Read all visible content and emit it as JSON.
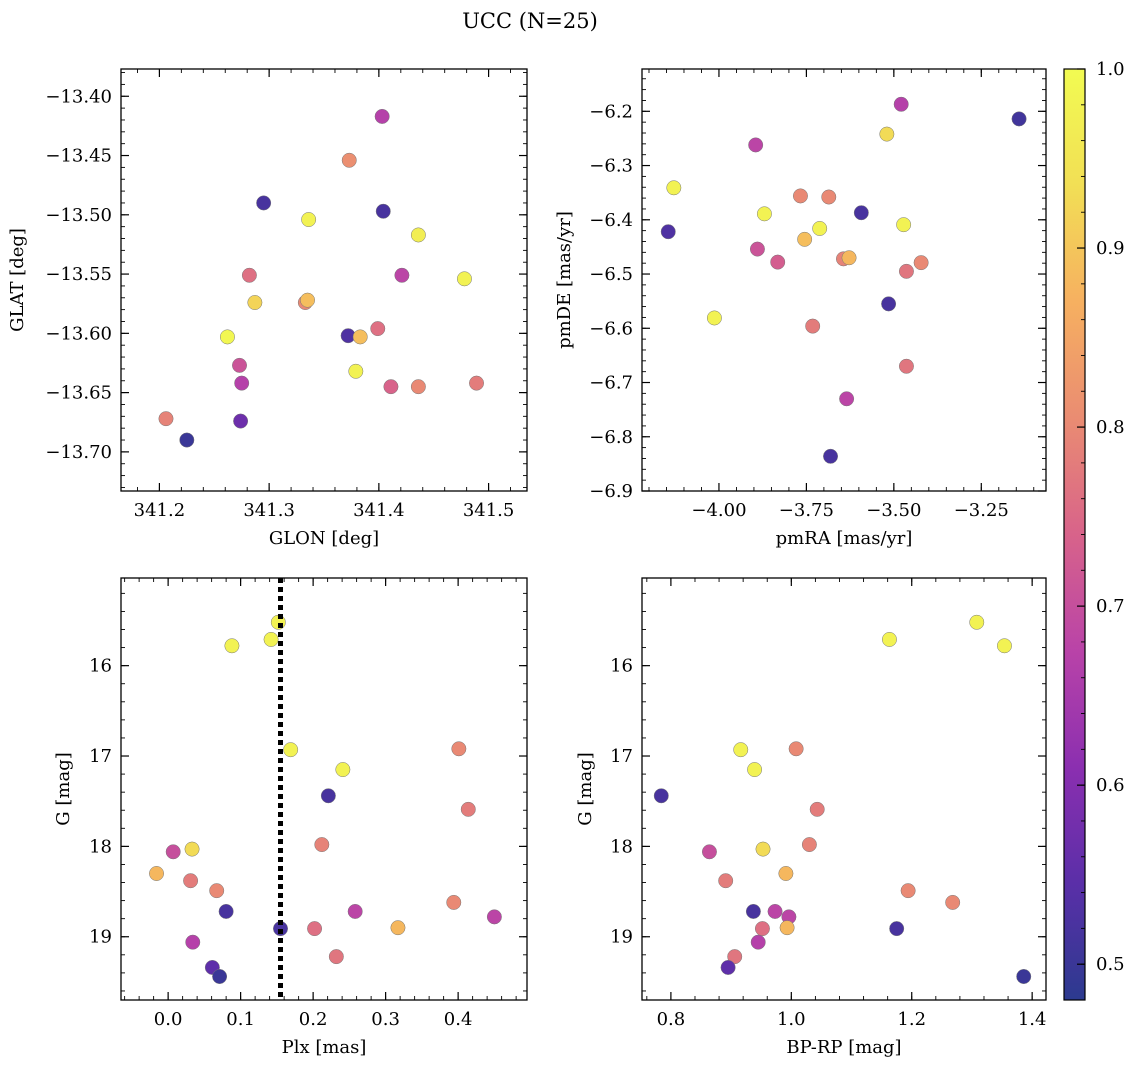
{
  "title": "UCC (N=25)",
  "colorbar": {
    "range": [
      0.48,
      1.0
    ],
    "ticks": [
      0.5,
      0.6,
      0.7,
      0.8,
      0.9,
      1.0
    ],
    "tick_labels": [
      "0.5",
      "0.6",
      "0.7",
      "0.8",
      "0.9",
      "1.0"
    ],
    "colormap": "plasma",
    "stops": [
      "#2c3a8f",
      "#5a2fa8",
      "#8b2fb0",
      "#b943a8",
      "#d8638a",
      "#ea8c72",
      "#f6b060",
      "#f2df55",
      "#f2fb52"
    ]
  },
  "chart_data": [
    {
      "type": "scatter",
      "xlabel": "GLON [deg]",
      "ylabel": "GLAT [deg]",
      "xlim": [
        341.165,
        341.535
      ],
      "ylim": [
        -13.733,
        -13.377
      ],
      "y_inverted": false,
      "xticks": [
        341.2,
        341.3,
        341.4,
        341.5
      ],
      "xtick_labels": [
        "341.2",
        "341.3",
        "341.4",
        "341.5"
      ],
      "yticks": [
        -13.4,
        -13.45,
        -13.5,
        -13.55,
        -13.6,
        -13.65,
        -13.7
      ],
      "ytick_labels": [
        "−13.40",
        "−13.45",
        "−13.50",
        "−13.55",
        "−13.60",
        "−13.65",
        "−13.70"
      ],
      "points": [
        {
          "x": 341.403,
          "y": -13.417,
          "c": 0.67
        },
        {
          "x": 341.373,
          "y": -13.454,
          "c": 0.81
        },
        {
          "x": 341.295,
          "y": -13.49,
          "c": 0.52
        },
        {
          "x": 341.404,
          "y": -13.497,
          "c": 0.52
        },
        {
          "x": 341.336,
          "y": -13.504,
          "c": 0.98
        },
        {
          "x": 341.436,
          "y": -13.517,
          "c": 0.97
        },
        {
          "x": 341.282,
          "y": -13.551,
          "c": 0.76
        },
        {
          "x": 341.421,
          "y": -13.551,
          "c": 0.68
        },
        {
          "x": 341.478,
          "y": -13.554,
          "c": 0.98
        },
        {
          "x": 341.287,
          "y": -13.574,
          "c": 0.92
        },
        {
          "x": 341.333,
          "y": -13.574,
          "c": 0.8
        },
        {
          "x": 341.335,
          "y": -13.572,
          "c": 0.89
        },
        {
          "x": 341.262,
          "y": -13.603,
          "c": 0.99
        },
        {
          "x": 341.372,
          "y": -13.602,
          "c": 0.53
        },
        {
          "x": 341.383,
          "y": -13.603,
          "c": 0.89
        },
        {
          "x": 341.399,
          "y": -13.596,
          "c": 0.76
        },
        {
          "x": 341.273,
          "y": -13.627,
          "c": 0.71
        },
        {
          "x": 341.379,
          "y": -13.632,
          "c": 0.98
        },
        {
          "x": 341.275,
          "y": -13.642,
          "c": 0.67
        },
        {
          "x": 341.411,
          "y": -13.645,
          "c": 0.74
        },
        {
          "x": 341.436,
          "y": -13.645,
          "c": 0.8
        },
        {
          "x": 341.489,
          "y": -13.642,
          "c": 0.78
        },
        {
          "x": 341.206,
          "y": -13.672,
          "c": 0.79
        },
        {
          "x": 341.274,
          "y": -13.674,
          "c": 0.57
        },
        {
          "x": 341.225,
          "y": -13.69,
          "c": 0.5
        }
      ]
    },
    {
      "type": "scatter",
      "xlabel": "pmRA [mas/yr]",
      "ylabel": "pmDE [mas/yr]",
      "xlim": [
        -4.22,
        -3.065
      ],
      "ylim": [
        -6.9,
        -6.122
      ],
      "y_inverted": false,
      "xticks": [
        -4.0,
        -3.75,
        -3.5,
        -3.25
      ],
      "xtick_labels": [
        "−4.00",
        "−3.75",
        "−3.50",
        "−3.25"
      ],
      "yticks": [
        -6.2,
        -6.3,
        -6.4,
        -6.5,
        -6.6,
        -6.7,
        -6.8,
        -6.9
      ],
      "ytick_labels": [
        "−6.2",
        "−6.3",
        "−6.4",
        "−6.5",
        "−6.6",
        "−6.7",
        "−6.8",
        "−6.9"
      ],
      "points": [
        {
          "x": -3.479,
          "y": -6.187,
          "c": 0.67
        },
        {
          "x": -3.142,
          "y": -6.214,
          "c": 0.51
        },
        {
          "x": -3.52,
          "y": -6.242,
          "c": 0.93
        },
        {
          "x": -3.895,
          "y": -6.262,
          "c": 0.68
        },
        {
          "x": -4.129,
          "y": -6.341,
          "c": 0.98
        },
        {
          "x": -3.767,
          "y": -6.356,
          "c": 0.8
        },
        {
          "x": -3.686,
          "y": -6.358,
          "c": 0.8
        },
        {
          "x": -3.87,
          "y": -6.389,
          "c": 0.98
        },
        {
          "x": -3.593,
          "y": -6.387,
          "c": 0.52
        },
        {
          "x": -3.472,
          "y": -6.409,
          "c": 0.98
        },
        {
          "x": -4.145,
          "y": -6.422,
          "c": 0.53
        },
        {
          "x": -3.712,
          "y": -6.416,
          "c": 0.98
        },
        {
          "x": -3.755,
          "y": -6.436,
          "c": 0.89
        },
        {
          "x": -3.89,
          "y": -6.454,
          "c": 0.71
        },
        {
          "x": -3.644,
          "y": -6.472,
          "c": 0.79
        },
        {
          "x": -3.628,
          "y": -6.47,
          "c": 0.88
        },
        {
          "x": -3.422,
          "y": -6.479,
          "c": 0.8
        },
        {
          "x": -3.832,
          "y": -6.478,
          "c": 0.73
        },
        {
          "x": -3.464,
          "y": -6.495,
          "c": 0.77
        },
        {
          "x": -3.515,
          "y": -6.555,
          "c": 0.52
        },
        {
          "x": -3.732,
          "y": -6.596,
          "c": 0.78
        },
        {
          "x": -3.464,
          "y": -6.67,
          "c": 0.77
        },
        {
          "x": -3.635,
          "y": -6.73,
          "c": 0.68
        },
        {
          "x": -3.681,
          "y": -6.836,
          "c": 0.52
        },
        {
          "x": -4.013,
          "y": -6.581,
          "c": 0.98
        }
      ]
    },
    {
      "type": "scatter",
      "xlabel": "Plx [mas]",
      "ylabel": "G [mag]",
      "xlim": [
        -0.065,
        0.495
      ],
      "ylim": [
        15.03,
        19.7
      ],
      "y_inverted": true,
      "xticks": [
        0.0,
        0.1,
        0.2,
        0.3,
        0.4
      ],
      "xtick_labels": [
        "0.0",
        "0.1",
        "0.2",
        "0.3",
        "0.4"
      ],
      "yticks": [
        16,
        17,
        18,
        19
      ],
      "ytick_labels": [
        "16",
        "17",
        "18",
        "19"
      ],
      "vline": {
        "x": 0.155,
        "style": "dotted",
        "color": "#000000"
      },
      "points": [
        {
          "x": 0.152,
          "y": 15.52,
          "c": 0.98
        },
        {
          "x": 0.142,
          "y": 15.71,
          "c": 0.98
        },
        {
          "x": 0.088,
          "y": 15.78,
          "c": 0.98
        },
        {
          "x": 0.169,
          "y": 16.93,
          "c": 0.98
        },
        {
          "x": 0.401,
          "y": 16.92,
          "c": 0.8
        },
        {
          "x": 0.241,
          "y": 17.15,
          "c": 0.98
        },
        {
          "x": 0.221,
          "y": 17.44,
          "c": 0.52
        },
        {
          "x": 0.414,
          "y": 17.59,
          "c": 0.78
        },
        {
          "x": 0.212,
          "y": 17.98,
          "c": 0.79
        },
        {
          "x": 0.007,
          "y": 18.06,
          "c": 0.7
        },
        {
          "x": 0.033,
          "y": 18.03,
          "c": 0.93
        },
        {
          "x": -0.016,
          "y": 18.3,
          "c": 0.88
        },
        {
          "x": 0.031,
          "y": 18.38,
          "c": 0.78
        },
        {
          "x": 0.067,
          "y": 18.49,
          "c": 0.8
        },
        {
          "x": 0.08,
          "y": 18.72,
          "c": 0.52
        },
        {
          "x": 0.258,
          "y": 18.72,
          "c": 0.68
        },
        {
          "x": 0.394,
          "y": 18.62,
          "c": 0.8
        },
        {
          "x": 0.45,
          "y": 18.78,
          "c": 0.68
        },
        {
          "x": 0.155,
          "y": 18.91,
          "c": 0.52
        },
        {
          "x": 0.202,
          "y": 18.91,
          "c": 0.76
        },
        {
          "x": 0.317,
          "y": 18.9,
          "c": 0.88
        },
        {
          "x": 0.034,
          "y": 19.06,
          "c": 0.67
        },
        {
          "x": 0.232,
          "y": 19.22,
          "c": 0.77
        },
        {
          "x": 0.061,
          "y": 19.34,
          "c": 0.55
        },
        {
          "x": 0.071,
          "y": 19.44,
          "c": 0.5
        }
      ]
    },
    {
      "type": "scatter",
      "xlabel": "BP-RP [mag]",
      "ylabel": "G [mag]",
      "xlim": [
        0.752,
        1.423
      ],
      "ylim": [
        15.03,
        19.7
      ],
      "y_inverted": true,
      "xticks": [
        0.8,
        1.0,
        1.2,
        1.4
      ],
      "xtick_labels": [
        "0.8",
        "1.0",
        "1.2",
        "1.4"
      ],
      "yticks": [
        16,
        17,
        18,
        19
      ],
      "ytick_labels": [
        "16",
        "17",
        "18",
        "19"
      ],
      "points": [
        {
          "x": 1.308,
          "y": 15.52,
          "c": 0.98
        },
        {
          "x": 1.163,
          "y": 15.71,
          "c": 0.98
        },
        {
          "x": 1.354,
          "y": 15.78,
          "c": 0.98
        },
        {
          "x": 0.916,
          "y": 16.93,
          "c": 0.98
        },
        {
          "x": 1.008,
          "y": 16.92,
          "c": 0.8
        },
        {
          "x": 0.939,
          "y": 17.15,
          "c": 0.98
        },
        {
          "x": 0.784,
          "y": 17.44,
          "c": 0.52
        },
        {
          "x": 1.043,
          "y": 17.59,
          "c": 0.78
        },
        {
          "x": 1.03,
          "y": 17.98,
          "c": 0.79
        },
        {
          "x": 0.864,
          "y": 18.06,
          "c": 0.7
        },
        {
          "x": 0.953,
          "y": 18.03,
          "c": 0.93
        },
        {
          "x": 0.991,
          "y": 18.3,
          "c": 0.88
        },
        {
          "x": 0.891,
          "y": 18.38,
          "c": 0.78
        },
        {
          "x": 1.194,
          "y": 18.49,
          "c": 0.8
        },
        {
          "x": 0.937,
          "y": 18.72,
          "c": 0.52
        },
        {
          "x": 0.973,
          "y": 18.72,
          "c": 0.68
        },
        {
          "x": 1.268,
          "y": 18.62,
          "c": 0.8
        },
        {
          "x": 0.996,
          "y": 18.78,
          "c": 0.68
        },
        {
          "x": 1.175,
          "y": 18.91,
          "c": 0.52
        },
        {
          "x": 0.952,
          "y": 18.91,
          "c": 0.76
        },
        {
          "x": 0.993,
          "y": 18.9,
          "c": 0.88
        },
        {
          "x": 0.945,
          "y": 19.06,
          "c": 0.67
        },
        {
          "x": 0.906,
          "y": 19.22,
          "c": 0.77
        },
        {
          "x": 0.895,
          "y": 19.34,
          "c": 0.55
        },
        {
          "x": 1.386,
          "y": 19.44,
          "c": 0.5
        }
      ]
    }
  ]
}
